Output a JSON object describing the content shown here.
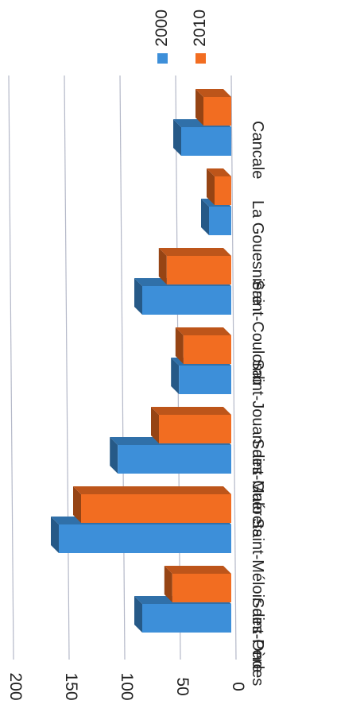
{
  "chart_data": {
    "type": "bar",
    "categories": [
      "Cancale",
      "La Gouesnière",
      "Saint-Coulomb",
      "Saint-Jouan-des-Guérets",
      "Saint-Malo",
      "Saint-Méloir-des-Ondes",
      "Saint-Père"
    ],
    "series": [
      {
        "name": "2000",
        "values": [
          45,
          20,
          80,
          47,
          102,
          155,
          80
        ]
      },
      {
        "name": "2010",
        "values": [
          25,
          15,
          58,
          43,
          65,
          135,
          53
        ]
      }
    ],
    "ylim": [
      0,
      200
    ],
    "yticks": [
      0,
      50,
      100,
      150,
      200
    ],
    "colors": {
      "2000": "#3d8fd9",
      "2010": "#f26d21"
    },
    "grid": true,
    "three_d": true,
    "legend_position": "top",
    "orientation": "rotated 90° clockwise"
  }
}
